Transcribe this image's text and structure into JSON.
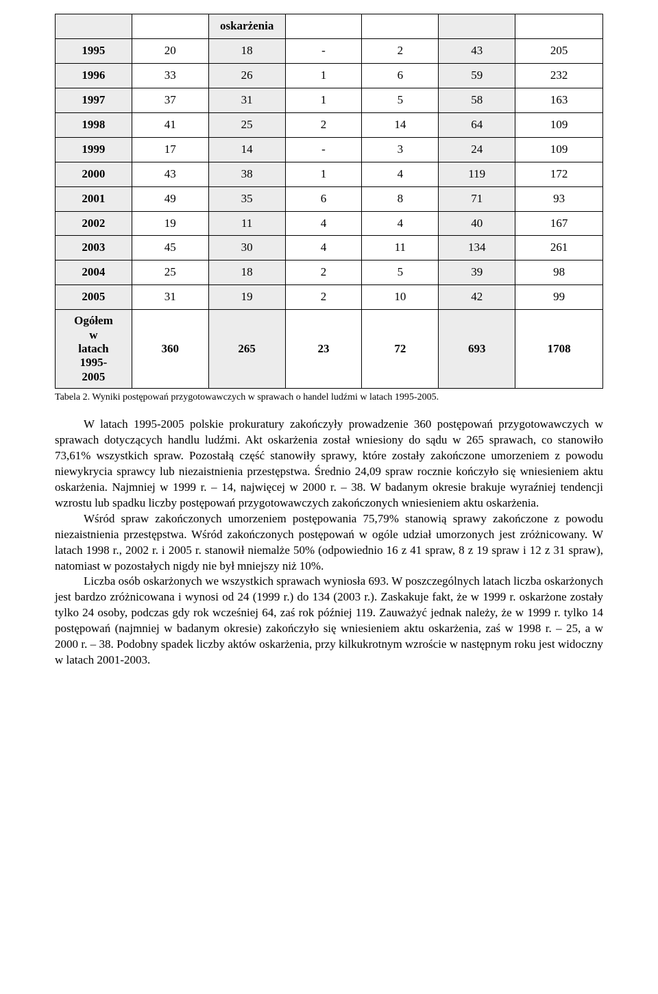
{
  "table": {
    "header_label": "oskarżenia",
    "col_widths_pct": [
      14,
      14,
      14,
      14,
      14,
      14,
      16
    ],
    "rows": [
      {
        "year": "1995",
        "c1": "20",
        "c2": "18",
        "c3": "-",
        "c4": "2",
        "c5": "43",
        "c6": "205"
      },
      {
        "year": "1996",
        "c1": "33",
        "c2": "26",
        "c3": "1",
        "c4": "6",
        "c5": "59",
        "c6": "232"
      },
      {
        "year": "1997",
        "c1": "37",
        "c2": "31",
        "c3": "1",
        "c4": "5",
        "c5": "58",
        "c6": "163"
      },
      {
        "year": "1998",
        "c1": "41",
        "c2": "25",
        "c3": "2",
        "c4": "14",
        "c5": "64",
        "c6": "109"
      },
      {
        "year": "1999",
        "c1": "17",
        "c2": "14",
        "c3": "-",
        "c4": "3",
        "c5": "24",
        "c6": "109"
      },
      {
        "year": "2000",
        "c1": "43",
        "c2": "38",
        "c3": "1",
        "c4": "4",
        "c5": "119",
        "c6": "172"
      },
      {
        "year": "2001",
        "c1": "49",
        "c2": "35",
        "c3": "6",
        "c4": "8",
        "c5": "71",
        "c6": "93"
      },
      {
        "year": "2002",
        "c1": "19",
        "c2": "11",
        "c3": "4",
        "c4": "4",
        "c5": "40",
        "c6": "167"
      },
      {
        "year": "2003",
        "c1": "45",
        "c2": "30",
        "c3": "4",
        "c4": "11",
        "c5": "134",
        "c6": "261"
      },
      {
        "year": "2004",
        "c1": "25",
        "c2": "18",
        "c3": "2",
        "c4": "5",
        "c5": "39",
        "c6": "98"
      },
      {
        "year": "2005",
        "c1": "31",
        "c2": "19",
        "c3": "2",
        "c4": "10",
        "c5": "42",
        "c6": "99"
      }
    ],
    "total": {
      "label": "Ogółem w latach 1995-2005",
      "c1": "360",
      "c2": "265",
      "c3": "23",
      "c4": "72",
      "c5": "693",
      "c6": "1708"
    },
    "shaded_cols": [
      true,
      false,
      true,
      false,
      false,
      true,
      false
    ],
    "shade_color": "#ececec",
    "border_color": "#000000",
    "font_size": 17
  },
  "caption": "Tabela 2. Wyniki postępowań przygotowawczych w sprawach o handel ludźmi w latach 1995-2005.",
  "paragraphs": [
    "W latach 1995-2005 polskie prokuratury zakończyły prowadzenie 360 postępowań przygotowawczych w sprawach dotyczących handlu ludźmi. Akt oskarżenia został wniesiony do sądu w 265 sprawach, co stanowiło 73,61% wszystkich spraw. Pozostałą część stanowiły sprawy, które zostały zakończone umorzeniem z powodu niewykrycia sprawcy lub niezaistnienia przestępstwa. Średnio 24,09 spraw rocznie kończyło się wniesieniem aktu oskarżenia. Najmniej w 1999 r. – 14, najwięcej w 2000 r. – 38. W badanym okresie brakuje wyraźniej tendencji wzrostu lub spadku liczby postępowań przygotowawczych zakończonych wniesieniem aktu oskarżenia.",
    "Wśród spraw zakończonych umorzeniem postępowania 75,79% stanowią sprawy zakończone z powodu niezaistnienia przestępstwa. Wśród zakończonych postępowań w ogóle udział umorzonych jest zróżnicowany. W latach 1998 r., 2002 r. i 2005 r. stanowił niemalże 50% (odpowiednio 16 z 41 spraw, 8 z 19 spraw i 12 z 31 spraw), natomiast w pozostałych nigdy nie był mniejszy niż 10%.",
    "Liczba osób oskarżonych we wszystkich sprawach wyniosła 693. W poszczególnych latach liczba oskarżonych jest bardzo zróżnicowana i wynosi od 24 (1999 r.) do 134 (2003 r.). Zaskakuje fakt, że w 1999 r. oskarżone zostały tylko 24 osoby, podczas gdy rok wcześniej 64, zaś rok później 119. Zauważyć jednak należy, że w 1999 r. tylko 14 postępowań (najmniej w badanym okresie) zakończyło się wniesieniem aktu oskarżenia, zaś w 1998 r. – 25, a w 2000 r. – 38. Podobny spadek liczby aktów oskarżenia, przy kilkukrotnym wzroście w następnym roku jest widoczny w latach 2001-2003."
  ],
  "colors": {
    "background": "#ffffff",
    "text": "#000000"
  }
}
